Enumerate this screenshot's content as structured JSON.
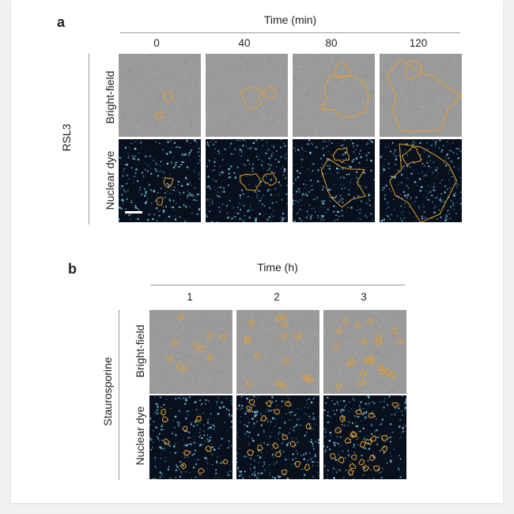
{
  "panel_a": {
    "letter": "a",
    "time_label": "Time (min)",
    "columns": [
      "0",
      "40",
      "80",
      "120"
    ],
    "treatment": "RSL3",
    "rows": [
      "Bright-field",
      "Nuclear dye"
    ]
  },
  "panel_b": {
    "letter": "b",
    "time_label": "Time (h)",
    "columns": [
      "1",
      "2",
      "3"
    ],
    "treatment": "Staurosporine",
    "rows": [
      "Bright-field",
      "Nuclear dye"
    ]
  },
  "colors": {
    "brightfield": "#9a9a9a",
    "nuclear_bg": "#07101c",
    "nuclear_dot": "#7fc8ea",
    "outline": "#e7a02c",
    "axis_line": "#9a9a9a"
  }
}
